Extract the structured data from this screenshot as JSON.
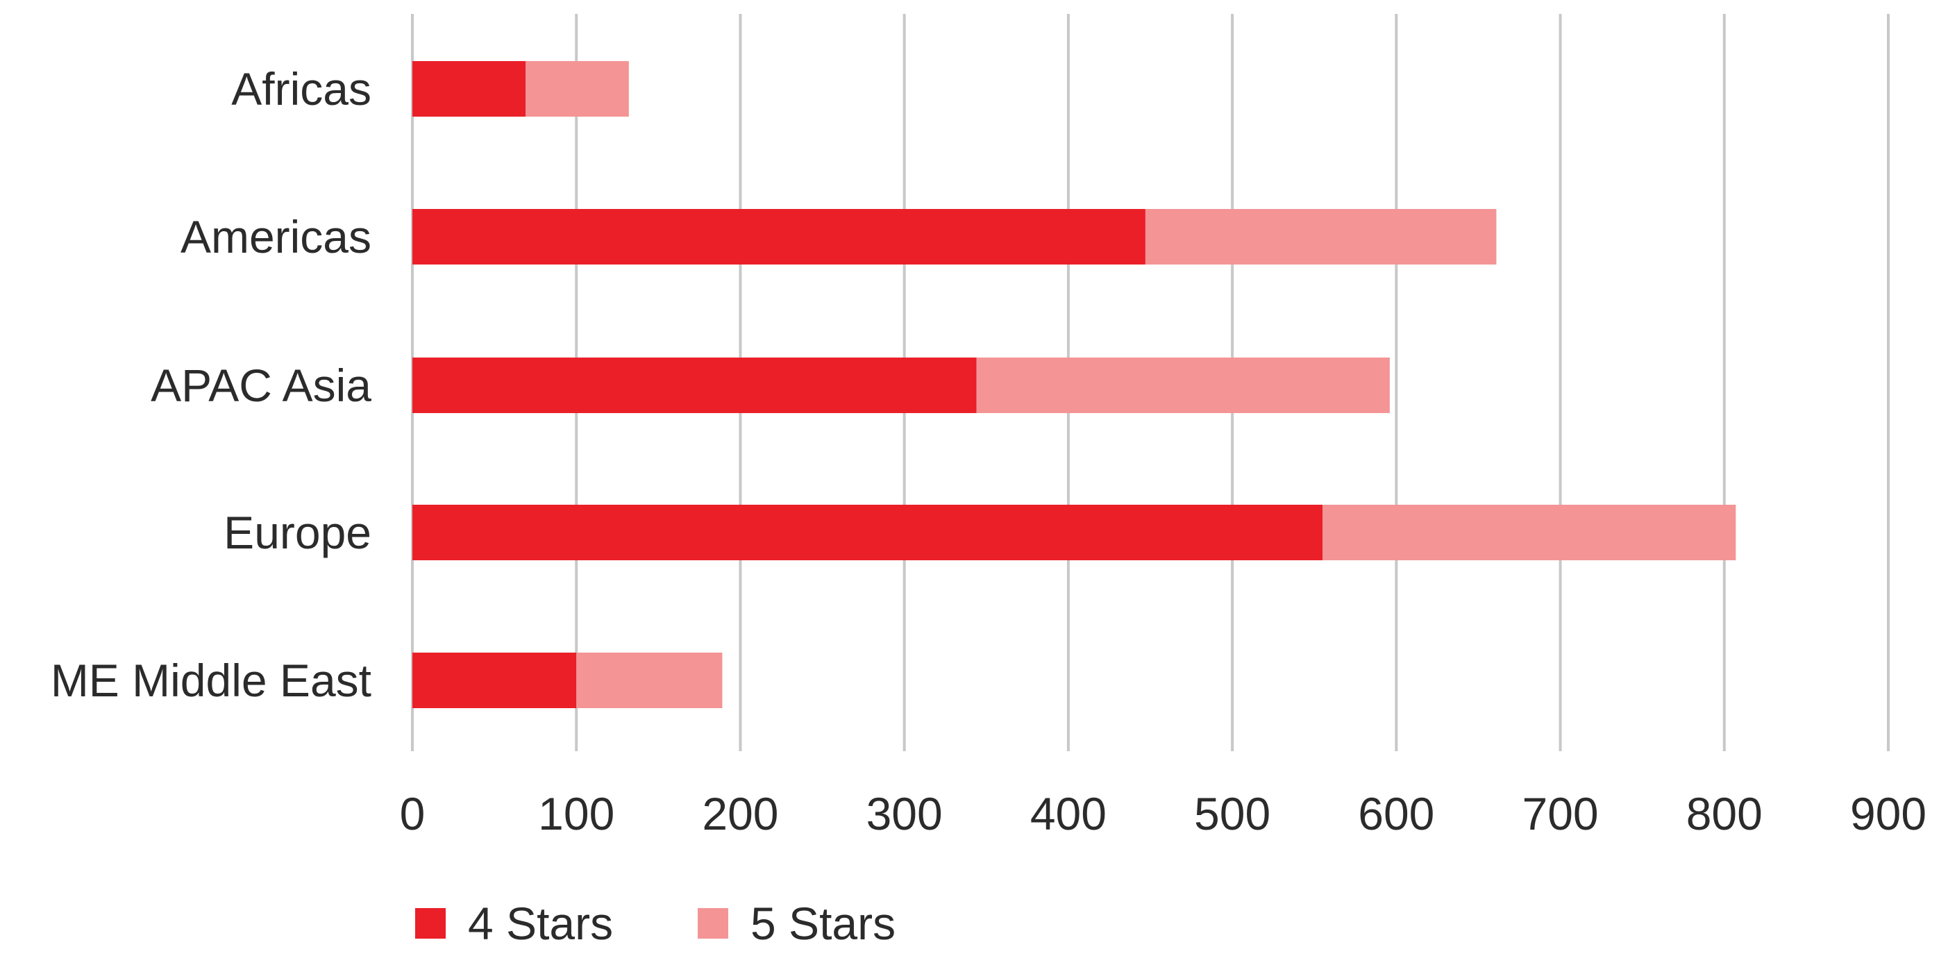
{
  "chart_data": {
    "type": "bar",
    "orientation": "horizontal",
    "stacked": true,
    "title": "",
    "xlabel": "",
    "ylabel": "",
    "categories": [
      "Africas",
      "Americas",
      "APAC Asia",
      "Europe",
      "ME Middle East"
    ],
    "series": [
      {
        "name": "4 Stars",
        "color": "#ea1f28",
        "values": [
          69,
          447,
          344,
          555,
          100
        ]
      },
      {
        "name": "5 Stars",
        "color": "#f49495",
        "values": [
          63,
          214,
          252,
          252,
          89
        ]
      }
    ],
    "xlim": [
      0,
      900
    ],
    "xticks": [
      0,
      100,
      200,
      300,
      400,
      500,
      600,
      700,
      800,
      900
    ],
    "xtick_labels": [
      "0",
      "100",
      "200",
      "300",
      "400",
      "500",
      "600",
      "700",
      "800",
      "900"
    ],
    "grid": "vertical",
    "grid_color": "#c8c8c8",
    "legend_position": "bottom-left"
  }
}
